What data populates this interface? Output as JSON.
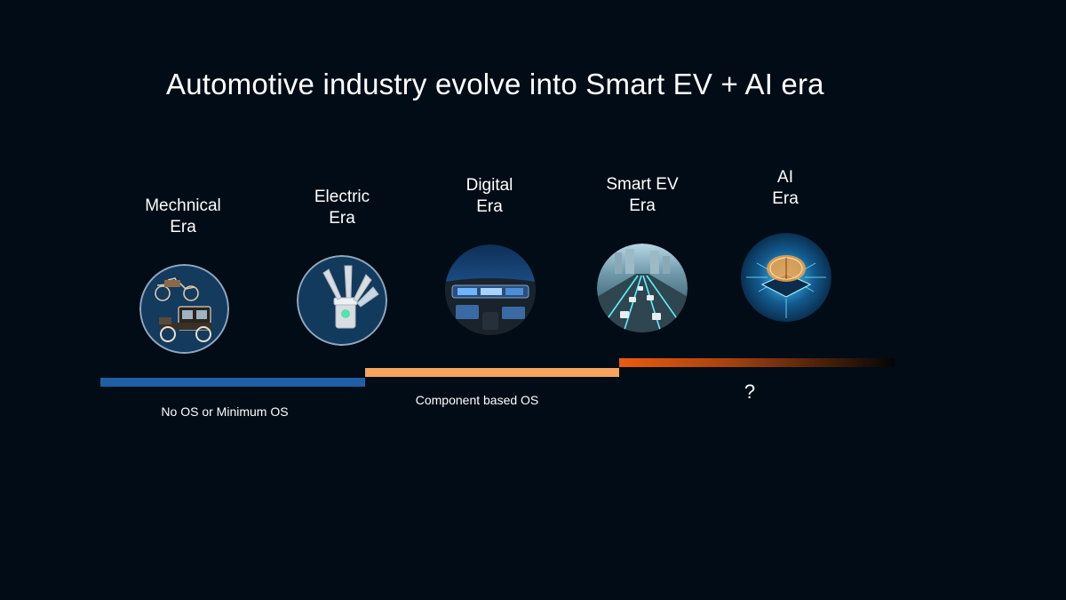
{
  "slide": {
    "title": "Automotive industry evolve into Smart EV + AI era",
    "eras": [
      {
        "label": "Mechnical\nEra",
        "image": "vintage-cars-icon"
      },
      {
        "label": "Electric\nEra",
        "image": "electric-piston-icon"
      },
      {
        "label": "Digital\nEra",
        "image": "digital-cockpit-icon"
      },
      {
        "label": "Smart EV\nEra",
        "image": "smart-highway-icon"
      },
      {
        "label": "AI\nEra",
        "image": "ai-brain-chip-icon"
      }
    ],
    "os_stages": [
      {
        "label": "No OS or Minimum OS",
        "color": "#1f5fa6"
      },
      {
        "label": "Component based OS",
        "color": "#f6a45e"
      },
      {
        "label": "?",
        "color": "#ec5a0f"
      }
    ]
  }
}
